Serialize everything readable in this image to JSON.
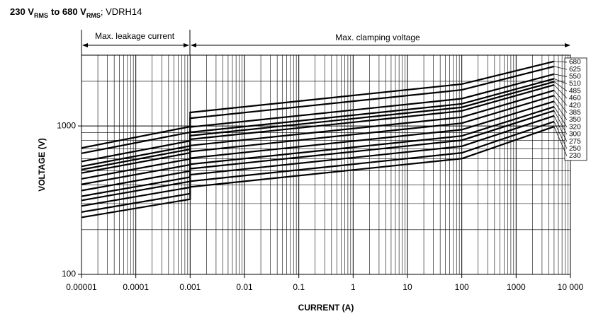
{
  "chart_data": {
    "type": "line",
    "title": [
      "230 V",
      "RMS",
      "to 680 V",
      "RMS",
      "; VDRH14"
    ],
    "annotations": [
      "Max. leakage current",
      "Max. clamping voltage"
    ],
    "x_label": "CURRENT (A)",
    "y_label": "VOLTAGE (V)",
    "x": [
      1e-05,
      0.001,
      0.001,
      100,
      5000
    ],
    "series": [
      {
        "name": "680",
        "color": "#000000",
        "values": [
          711,
          990,
          1233,
          1915,
          2724
        ]
      },
      {
        "name": "625",
        "color": "#000000",
        "values": [
          654,
          907,
          1127,
          1751,
          2518
        ]
      },
      {
        "name": "550",
        "color": "#000000",
        "values": [
          576,
          794,
          983,
          1528,
          2234
        ]
      },
      {
        "name": "510",
        "color": "#000000",
        "values": [
          534,
          734,
          907,
          1410,
          2082
        ]
      },
      {
        "name": "485",
        "color": "#000000",
        "values": [
          508,
          697,
          860,
          1336,
          1987
        ]
      },
      {
        "name": "460",
        "color": "#000000",
        "values": [
          482,
          659,
          813,
          1263,
          1891
        ]
      },
      {
        "name": "420",
        "color": "#000000",
        "values": [
          440,
          600,
          738,
          1146,
          1737
        ]
      },
      {
        "name": "385",
        "color": "#000000",
        "values": [
          404,
          548,
          672,
          1044,
          1602
        ]
      },
      {
        "name": "350",
        "color": "#000000",
        "values": [
          367,
          497,
          607,
          944,
          1465
        ]
      },
      {
        "name": "320",
        "color": "#000000",
        "values": [
          336,
          452,
          552,
          857,
          1347
        ]
      },
      {
        "name": "300",
        "color": "#000000",
        "values": [
          315,
          423,
          515,
          801,
          1268
        ]
      },
      {
        "name": "275",
        "color": "#000000",
        "values": [
          289,
          386,
          469,
          730,
          1170
        ]
      },
      {
        "name": "250",
        "color": "#000000",
        "values": [
          263,
          350,
          424,
          659,
          1070
        ]
      },
      {
        "name": "230",
        "color": "#000000",
        "values": [
          242,
          321,
          388,
          603,
          990
        ]
      }
    ],
    "xscale": "log",
    "yscale": "log",
    "xlim": [
      1e-05,
      10000
    ],
    "ylim": [
      100,
      3000
    ],
    "xticks": [
      1e-05,
      0.0001,
      0.001,
      0.01,
      0.1,
      1,
      10,
      100,
      1000,
      {
        "value": 10000,
        "label": "10 000"
      }
    ],
    "yticks": [
      100,
      1000
    ],
    "grid": true,
    "minor_grid": true
  }
}
